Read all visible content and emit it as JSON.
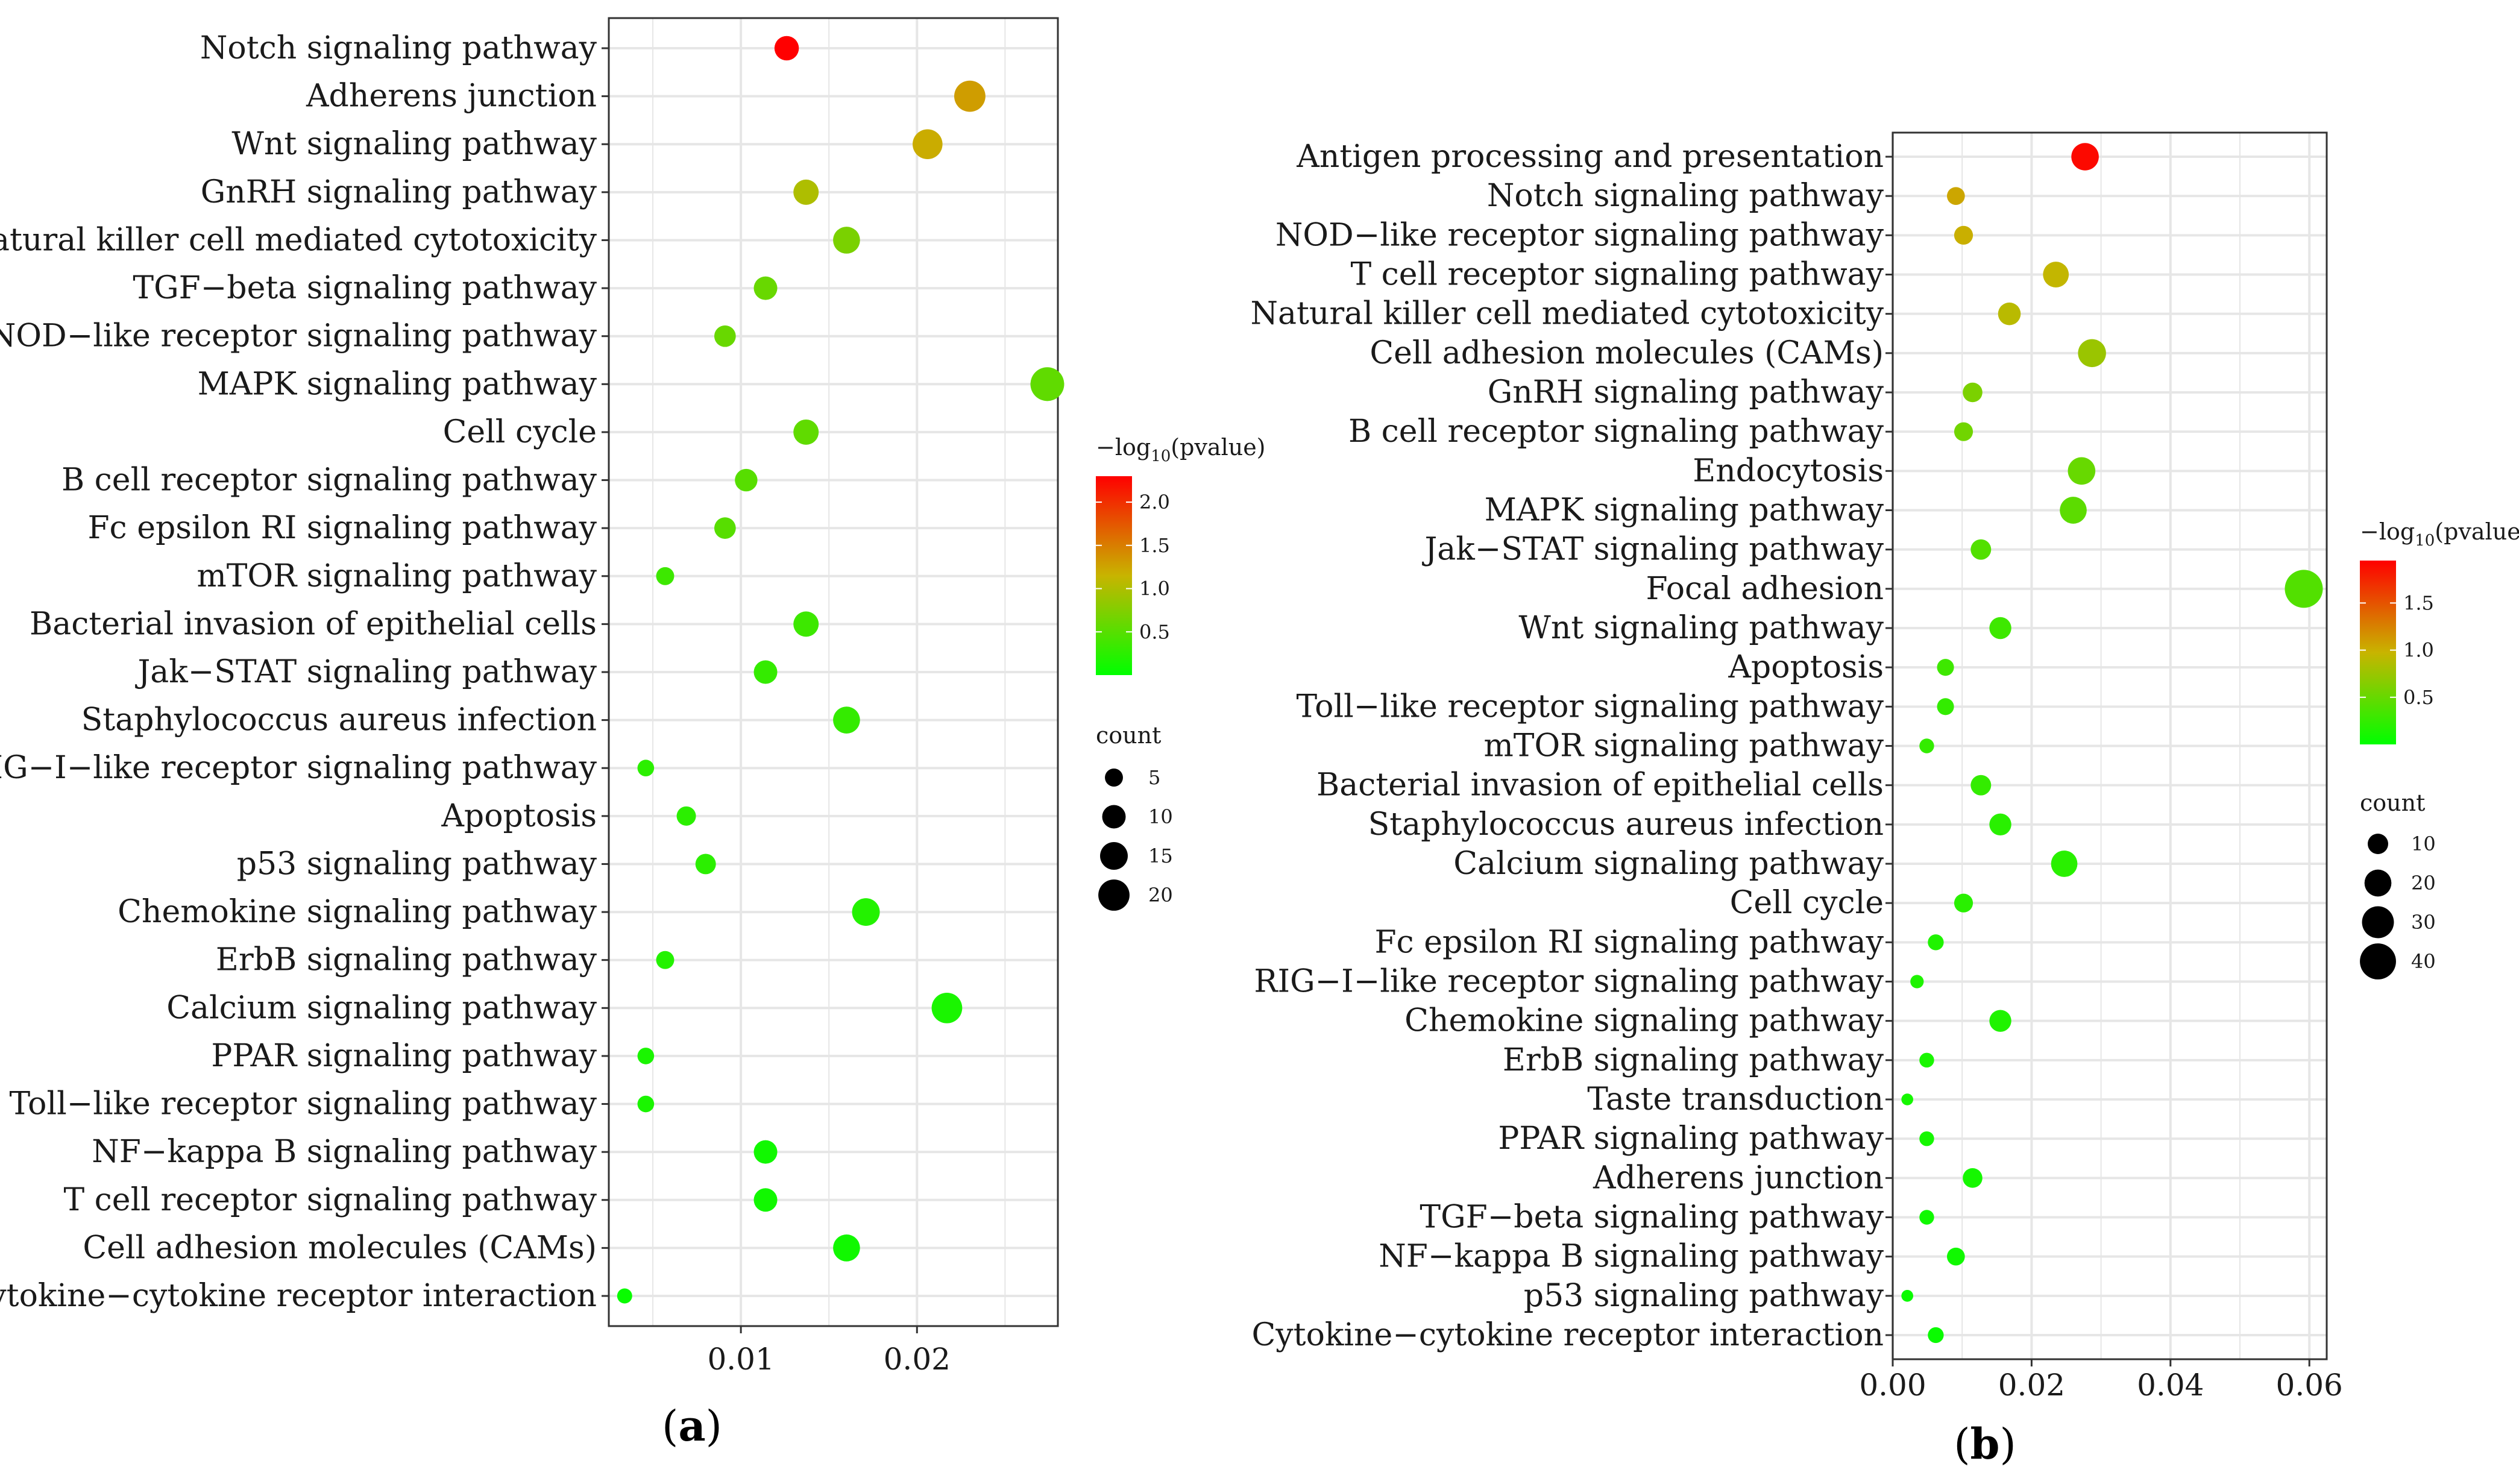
{
  "panels": [
    {
      "label_open": "(",
      "label_letter": "a",
      "label_close": ")"
    },
    {
      "label_open": "(",
      "label_letter": "b",
      "label_close": ")"
    }
  ],
  "colors": {
    "high": "#ff0000",
    "mid": "#c8b400",
    "low": "#00ff00",
    "grid": "#e6e6e6",
    "frame": "#333333"
  },
  "chart_data": [
    {
      "type": "scatter",
      "panel": "a",
      "categories": [
        "Notch signaling pathway",
        "Adherens junction",
        "Wnt signaling pathway",
        "GnRH signaling pathway",
        "Natural killer cell mediated cytotoxicity",
        "TGF−beta signaling pathway",
        "NOD−like receptor signaling pathway",
        "MAPK signaling pathway",
        "Cell cycle",
        "B cell receptor signaling pathway",
        "Fc epsilon RI signaling pathway",
        "mTOR signaling pathway",
        "Bacterial invasion of epithelial cells",
        "Jak−STAT signaling pathway",
        "Staphylococcus aureus infection",
        "RIG−I−like receptor signaling pathway",
        "Apoptosis",
        "p53 signaling pathway",
        "Chemokine signaling pathway",
        "ErbB signaling pathway",
        "Calcium signaling pathway",
        "PPAR signaling pathway",
        "Toll−like receptor signaling pathway",
        "NF−kappa B signaling pathway",
        "T cell receptor signaling pathway",
        "Cell adhesion molecules (CAMs)",
        "Cytokine−cytokine receptor interaction"
      ],
      "x": [
        0.0126,
        0.023,
        0.0206,
        0.0137,
        0.016,
        0.0114,
        0.0091,
        0.0274,
        0.0137,
        0.0103,
        0.0091,
        0.0057,
        0.0137,
        0.0114,
        0.016,
        0.0046,
        0.0069,
        0.008,
        0.0171,
        0.0057,
        0.0217,
        0.0046,
        0.0046,
        0.0114,
        0.0114,
        0.016,
        0.0034
      ],
      "count": [
        11,
        20,
        18,
        12,
        14,
        10,
        8,
        24,
        12,
        9,
        8,
        5,
        12,
        10,
        14,
        4,
        6,
        7,
        15,
        5,
        19,
        4,
        4,
        10,
        10,
        14,
        3
      ],
      "neglog10p": [
        2.3,
        1.3,
        1.2,
        1.0,
        0.7,
        0.6,
        0.6,
        0.55,
        0.55,
        0.5,
        0.5,
        0.35,
        0.35,
        0.3,
        0.3,
        0.25,
        0.25,
        0.25,
        0.2,
        0.2,
        0.15,
        0.15,
        0.15,
        0.1,
        0.1,
        0.1,
        0.05
      ],
      "xlim": [
        0.0025,
        0.028
      ],
      "xticks": [
        0.01,
        0.02
      ],
      "xtick_labels": [
        "0.01",
        "0.02"
      ],
      "title": "",
      "xlabel": "",
      "ylabel": "",
      "grid": true,
      "color_legend": {
        "title_prefix": "−log",
        "title_sub": "10",
        "title_suffix": "(pvalue)",
        "range": [
          0.0,
          2.3
        ],
        "ticks": [
          0.5,
          1.0,
          1.5,
          2.0
        ],
        "tick_labels": [
          "0.5",
          "1.0",
          "1.5",
          "2.0"
        ]
      },
      "size_legend": {
        "title": "count",
        "values": [
          5,
          10,
          15,
          20
        ],
        "labels": [
          "5",
          "10",
          "15",
          "20"
        ]
      },
      "legend_position": "right"
    },
    {
      "type": "scatter",
      "panel": "b",
      "categories": [
        "Antigen processing and presentation",
        "Notch signaling pathway",
        "NOD−like receptor signaling pathway",
        "T cell receptor signaling pathway",
        "Natural killer cell mediated cytotoxicity",
        "Cell adhesion molecules (CAMs)",
        "GnRH signaling pathway",
        "B cell receptor signaling pathway",
        "Endocytosis",
        "MAPK signaling pathway",
        "Jak−STAT signaling pathway",
        "Focal adhesion",
        "Wnt signaling pathway",
        "Apoptosis",
        "Toll−like receptor signaling pathway",
        "mTOR signaling pathway",
        "Bacterial invasion of epithelial cells",
        "Staphylococcus aureus infection",
        "Calcium signaling pathway",
        "Cell cycle",
        "Fc epsilon RI signaling pathway",
        "RIG−I−like receptor signaling pathway",
        "Chemokine signaling pathway",
        "ErbB signaling pathway",
        "Taste transduction",
        "PPAR signaling pathway",
        "Adherens junction",
        "TGF−beta signaling pathway",
        "NF−kappa B signaling pathway",
        "p53 signaling pathway",
        "Cytokine−cytokine receptor interaction"
      ],
      "x": [
        0.0277,
        0.0091,
        0.0102,
        0.0235,
        0.0168,
        0.0287,
        0.0115,
        0.0102,
        0.0272,
        0.026,
        0.0127,
        0.0592,
        0.0155,
        0.0076,
        0.0076,
        0.0049,
        0.0127,
        0.0155,
        0.0247,
        0.0102,
        0.0062,
        0.0035,
        0.0155,
        0.0049,
        0.0021,
        0.0049,
        0.0115,
        0.0049,
        0.0091,
        0.0021,
        0.0062
      ],
      "count": [
        21,
        7,
        8,
        18,
        13,
        22,
        9,
        8,
        21,
        20,
        10,
        45,
        12,
        6,
        6,
        4,
        10,
        12,
        19,
        8,
        5,
        3,
        12,
        4,
        2,
        4,
        9,
        4,
        7,
        2,
        5
      ],
      "neglog10p": [
        1.9,
        1.05,
        1.0,
        0.95,
        0.9,
        0.75,
        0.6,
        0.55,
        0.5,
        0.45,
        0.4,
        0.4,
        0.3,
        0.3,
        0.25,
        0.25,
        0.25,
        0.2,
        0.2,
        0.2,
        0.15,
        0.15,
        0.15,
        0.12,
        0.1,
        0.1,
        0.1,
        0.08,
        0.08,
        0.05,
        0.05
      ],
      "xlim": [
        0.0,
        0.0625
      ],
      "xticks": [
        0.0,
        0.02,
        0.04,
        0.06
      ],
      "xtick_labels": [
        "0.00",
        "0.02",
        "0.04",
        "0.06"
      ],
      "title": "",
      "xlabel": "",
      "ylabel": "",
      "grid": true,
      "color_legend": {
        "title_prefix": "−log",
        "title_sub": "10",
        "title_suffix": "(pvalue)",
        "range": [
          0.0,
          1.95
        ],
        "ticks": [
          0.5,
          1.0,
          1.5
        ],
        "tick_labels": [
          "0.5",
          "1.0",
          "1.5"
        ]
      },
      "size_legend": {
        "title": "count",
        "values": [
          10,
          20,
          30,
          40
        ],
        "labels": [
          "10",
          "20",
          "30",
          "40"
        ]
      },
      "legend_position": "right"
    }
  ]
}
